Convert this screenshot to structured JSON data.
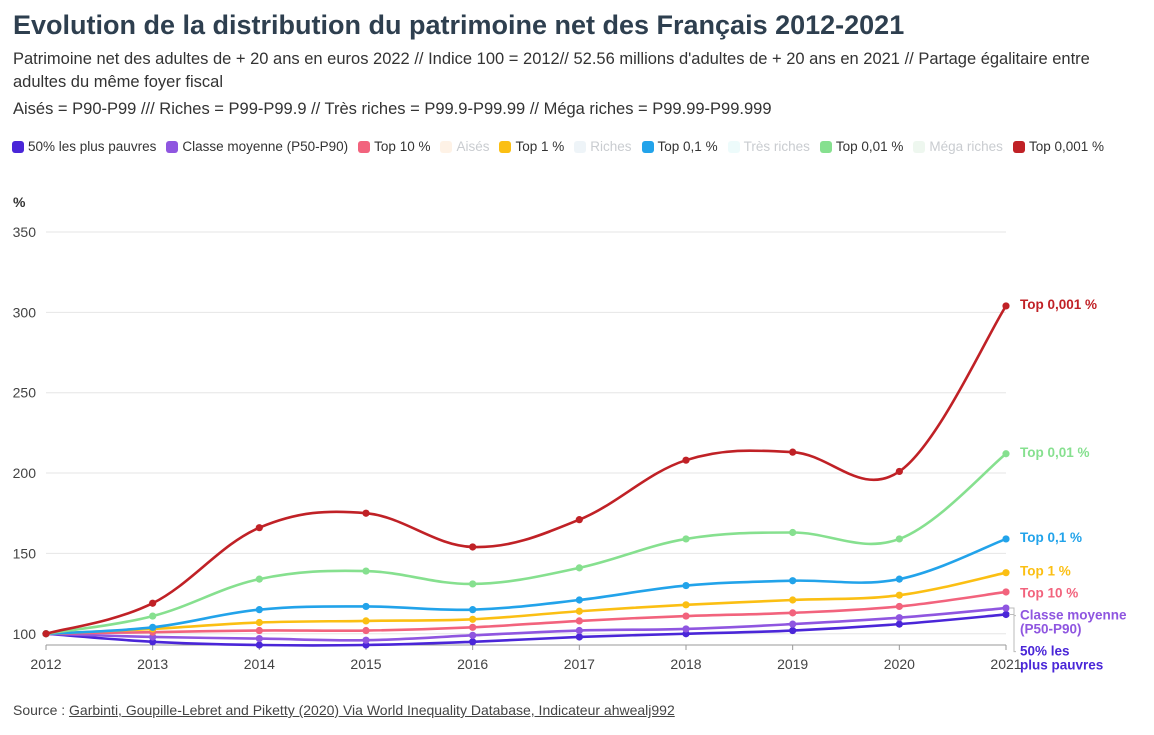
{
  "header": {
    "title": "Evolution de la distribution du patrimoine net des Français 2012-2021",
    "subtitle": "Patrimoine net des adultes de + 20 ans en euros 2022 // Indice 100 = 2012// 52.56 millions d'adultes de + 20 ans en 2021 // Partage égalitaire entre adultes du même foyer fiscal",
    "subtitle2": "Aisés = P90-P99 /// Riches = P99-P99.9 // Très riches = P99.9-P99.99 // Méga riches = P99.99-P99.999"
  },
  "legend": [
    {
      "label": "50% les plus pauvres",
      "color": "#4a26d8",
      "active": true
    },
    {
      "label": "Classe moyenne (P50-P90)",
      "color": "#8f56e0",
      "active": true
    },
    {
      "label": "Top 10 %",
      "color": "#f2637d",
      "active": true
    },
    {
      "label": "Aisés",
      "color": "#fbd9b8",
      "active": false
    },
    {
      "label": "Top 1 %",
      "color": "#fbbf13",
      "active": true
    },
    {
      "label": "Riches",
      "color": "#cfe0ea",
      "active": false
    },
    {
      "label": "Top 0,1 %",
      "color": "#22a3ea",
      "active": true
    },
    {
      "label": "Très riches",
      "color": "#ccf4f3",
      "active": false
    },
    {
      "label": "Top 0,01 %",
      "color": "#86e08f",
      "active": true
    },
    {
      "label": "Méga riches",
      "color": "#cfe9d0",
      "active": false
    },
    {
      "label": "Top 0,001 %",
      "color": "#c02126",
      "active": true
    }
  ],
  "source": {
    "prefix": "Source : ",
    "link_text": "Garbinti, Goupille-Lebret and Piketty (2020) Via World Inequality Database, Indicateur ahwealj992"
  },
  "chart_data": {
    "type": "line",
    "unit_label": "%",
    "x": [
      2012,
      2013,
      2014,
      2015,
      2016,
      2017,
      2018,
      2019,
      2020,
      2021
    ],
    "ylim": [
      93,
      350
    ],
    "yticks": [
      100,
      150,
      200,
      250,
      300,
      350
    ],
    "grid": true,
    "series": [
      {
        "name": "50% les plus pauvres",
        "end_label": "50% les plus pauvres",
        "color": "#4a26d8",
        "values": [
          100,
          95,
          93,
          93,
          95,
          98,
          100,
          102,
          106,
          112
        ]
      },
      {
        "name": "Classe moyenne (P50-P90)",
        "end_label": "Classe moyenne (P50-P90)",
        "color": "#8f56e0",
        "values": [
          100,
          98,
          97,
          96,
          99,
          102,
          103,
          106,
          110,
          116
        ]
      },
      {
        "name": "Top 10 %",
        "end_label": "Top 10 %",
        "color": "#f2637d",
        "values": [
          100,
          101,
          102,
          102,
          104,
          108,
          111,
          113,
          117,
          126
        ]
      },
      {
        "name": "Top 1 %",
        "end_label": "Top 1 %",
        "color": "#fbbf13",
        "values": [
          100,
          103,
          107,
          108,
          109,
          114,
          118,
          121,
          124,
          138
        ]
      },
      {
        "name": "Top 0,1 %",
        "end_label": "Top 0,1 %",
        "color": "#22a3ea",
        "values": [
          100,
          104,
          115,
          117,
          115,
          121,
          130,
          133,
          134,
          159
        ]
      },
      {
        "name": "Top 0,01 %",
        "end_label": "Top 0,01 %",
        "color": "#86e08f",
        "values": [
          100,
          111,
          134,
          139,
          131,
          141,
          159,
          163,
          159,
          212
        ]
      },
      {
        "name": "Top 0,001 %",
        "end_label": "Top 0,001 %",
        "color": "#c02126",
        "values": [
          100,
          119,
          166,
          175,
          154,
          171,
          208,
          213,
          201,
          304
        ]
      }
    ]
  }
}
